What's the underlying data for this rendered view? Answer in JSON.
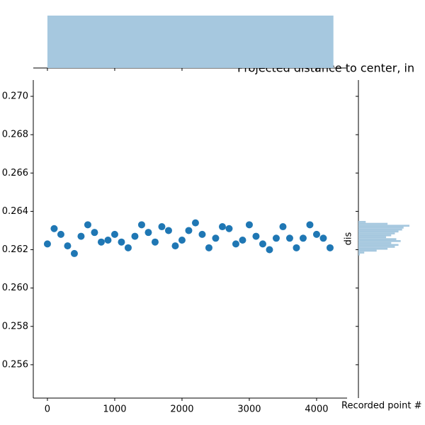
{
  "chart_data": {
    "type": "scatter",
    "title": "Projected distance to center, in",
    "x_label": "Recorded point #",
    "y_label": "dis",
    "color": "#1f77b4",
    "marginal_color": "#a6c8df",
    "x": [
      0,
      100,
      200,
      300,
      400,
      500,
      600,
      700,
      800,
      900,
      1000,
      1100,
      1200,
      1300,
      1400,
      1500,
      1600,
      1700,
      1800,
      1900,
      2000,
      2100,
      2200,
      2300,
      2400,
      2500,
      2600,
      2700,
      2800,
      2900,
      3000,
      3100,
      3200,
      3300,
      3400,
      3500,
      3600,
      3700,
      3800,
      3900,
      4000,
      4100,
      4200
    ],
    "y": [
      0.2623,
      0.2631,
      0.2628,
      0.2622,
      0.2618,
      0.2627,
      0.2633,
      0.2629,
      0.2624,
      0.2625,
      0.2628,
      0.2624,
      0.2621,
      0.2627,
      0.2633,
      0.2629,
      0.2624,
      0.2632,
      0.263,
      0.2622,
      0.2625,
      0.263,
      0.2634,
      0.2628,
      0.2621,
      0.2626,
      0.2632,
      0.2631,
      0.2623,
      0.2625,
      0.2633,
      0.2627,
      0.2623,
      0.262,
      0.2626,
      0.2632,
      0.2626,
      0.2621,
      0.2626,
      0.2633,
      0.2628,
      0.2626,
      0.2621
    ],
    "xlim": [
      -210,
      4453
    ],
    "ylim": [
      0.25426,
      0.27085
    ],
    "xticks": [
      0,
      1000,
      2000,
      3000,
      4000
    ],
    "yticks": [
      {
        "value": 0.256,
        "label": "0.256"
      },
      {
        "value": 0.258,
        "label": "0.258"
      },
      {
        "value": 0.26,
        "label": "0.260"
      },
      {
        "value": 0.262,
        "label": "0.262"
      },
      {
        "value": 0.264,
        "label": "0.264"
      },
      {
        "value": 0.266,
        "label": "0.266"
      },
      {
        "value": 0.268,
        "label": "0.268"
      },
      {
        "value": 0.27,
        "label": "0.270"
      }
    ],
    "marginal_x": {
      "bins": [
        0,
        4250
      ],
      "counts": [
        4250
      ]
    },
    "marginal_y": {
      "bins": [
        0.2617,
        0.2618,
        0.2619,
        0.262,
        0.2621,
        0.2622,
        0.2623,
        0.2624,
        0.2625,
        0.2626,
        0.2627,
        0.2628,
        0.2629,
        0.263,
        0.2631,
        0.2632,
        0.2633,
        0.2634,
        0.2635
      ],
      "counts": [
        2,
        8,
        25,
        40,
        50,
        55,
        45,
        58,
        52,
        38,
        45,
        50,
        55,
        60,
        62,
        70,
        40,
        10
      ]
    }
  }
}
